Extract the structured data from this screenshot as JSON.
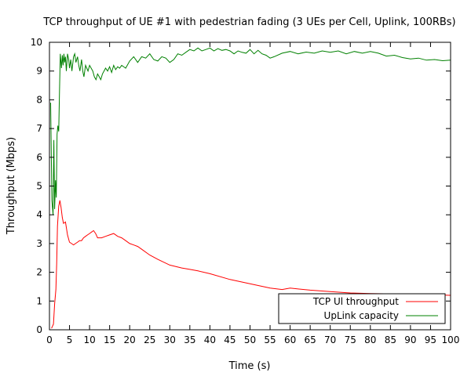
{
  "chart_data": {
    "type": "line",
    "title": "TCP throughput of UE #1 with pedestrian fading (3 UEs per Cell, Uplink, 100RBs)",
    "xlabel": "Time (s)",
    "ylabel": "Throughput (Mbps)",
    "xlim": [
      0,
      100
    ],
    "ylim": [
      0,
      10
    ],
    "xticks": [
      "0",
      "5",
      "10",
      "15",
      "20",
      "25",
      "30",
      "35",
      "40",
      "45",
      "50",
      "55",
      "60",
      "65",
      "70",
      "75",
      "80",
      "85",
      "90",
      "95",
      "100"
    ],
    "yticks": [
      "0",
      "1",
      "2",
      "3",
      "4",
      "5",
      "6",
      "7",
      "8",
      "9",
      "10"
    ],
    "grid": false,
    "legend_position": "bottom-right",
    "series": [
      {
        "name": "TCP Ul throughput",
        "color": "#ff0000",
        "x": [
          0.5,
          1.0,
          1.3,
          1.6,
          1.8,
          2.0,
          2.3,
          2.6,
          2.9,
          3.2,
          3.5,
          4.0,
          4.5,
          5.0,
          5.5,
          6.0,
          6.5,
          7.0,
          7.5,
          8.0,
          8.5,
          9.0,
          9.5,
          10.0,
          10.5,
          11.0,
          11.5,
          12.0,
          12.5,
          13.0,
          14.0,
          15.0,
          16.0,
          17.0,
          18.0,
          19.0,
          20.0,
          21.0,
          22.0,
          23.0,
          25.0,
          27.0,
          30.0,
          33.0,
          35.0,
          37.0,
          40.0,
          45.0,
          50.0,
          55.0,
          58.0,
          60.0,
          62.0,
          65.0,
          70.0,
          75.0,
          80.0,
          85.0,
          90.0,
          95.0,
          100.0
        ],
        "y": [
          0.05,
          0.2,
          0.9,
          1.4,
          2.3,
          3.6,
          4.3,
          4.5,
          4.25,
          3.9,
          3.7,
          3.75,
          3.3,
          3.05,
          3.0,
          2.95,
          3.0,
          3.05,
          3.1,
          3.1,
          3.2,
          3.25,
          3.3,
          3.35,
          3.4,
          3.45,
          3.35,
          3.2,
          3.2,
          3.2,
          3.25,
          3.3,
          3.35,
          3.25,
          3.2,
          3.1,
          3.0,
          2.95,
          2.9,
          2.8,
          2.6,
          2.45,
          2.25,
          2.15,
          2.1,
          2.05,
          1.95,
          1.75,
          1.6,
          1.45,
          1.4,
          1.45,
          1.42,
          1.38,
          1.33,
          1.28,
          1.26,
          1.25,
          1.23,
          1.22,
          1.2
        ]
      },
      {
        "name": "UpLink capacity",
        "color": "#008000",
        "x": [
          0.3,
          0.6,
          0.9,
          1.1,
          1.3,
          1.5,
          1.7,
          1.9,
          2.1,
          2.3,
          2.5,
          2.7,
          3.0,
          3.2,
          3.4,
          3.6,
          3.8,
          4.0,
          4.2,
          4.5,
          4.8,
          5.0,
          5.3,
          5.6,
          6.0,
          6.3,
          6.6,
          7.0,
          7.3,
          7.6,
          8.0,
          8.3,
          8.6,
          9.0,
          9.3,
          9.6,
          10.0,
          10.4,
          10.8,
          11.2,
          11.6,
          12.0,
          12.4,
          12.8,
          13.2,
          13.6,
          14.0,
          14.5,
          15.0,
          15.5,
          16.0,
          16.5,
          17.0,
          17.5,
          18.0,
          19.0,
          20.0,
          21.0,
          22.0,
          23.0,
          24.0,
          25.0,
          26.0,
          27.0,
          28.0,
          29.0,
          30.0,
          31.0,
          32.0,
          33.0,
          34.0,
          35.0,
          36.0,
          37.0,
          38.0,
          39.0,
          40.0,
          41.0,
          42.0,
          43.0,
          44.0,
          45.0,
          46.0,
          47.0,
          48.0,
          49.0,
          50.0,
          51.0,
          52.0,
          53.0,
          54.0,
          55.0,
          56.0,
          58.0,
          60.0,
          62.0,
          64.0,
          66.0,
          68.0,
          70.0,
          72.0,
          74.0,
          76.0,
          78.0,
          80.0,
          82.0,
          84.0,
          86.0,
          88.0,
          90.0,
          92.0,
          94.0,
          96.0,
          98.0,
          100.0
        ],
        "y": [
          7.9,
          4.5,
          4.0,
          6.6,
          4.2,
          5.2,
          4.6,
          6.8,
          7.1,
          6.9,
          8.3,
          9.6,
          9.1,
          9.55,
          9.2,
          9.6,
          9.3,
          9.5,
          9.0,
          9.6,
          9.4,
          9.1,
          9.4,
          9.0,
          9.5,
          9.6,
          9.3,
          9.5,
          9.2,
          9.0,
          9.4,
          9.0,
          8.8,
          9.2,
          9.1,
          9.0,
          9.2,
          9.1,
          9.0,
          8.8,
          8.7,
          8.9,
          8.8,
          8.7,
          8.9,
          9.0,
          9.1,
          9.0,
          9.15,
          8.95,
          9.2,
          9.05,
          9.15,
          9.1,
          9.2,
          9.1,
          9.35,
          9.5,
          9.3,
          9.5,
          9.45,
          9.6,
          9.4,
          9.35,
          9.5,
          9.45,
          9.3,
          9.4,
          9.6,
          9.55,
          9.65,
          9.75,
          9.7,
          9.8,
          9.7,
          9.75,
          9.8,
          9.7,
          9.78,
          9.72,
          9.75,
          9.7,
          9.6,
          9.7,
          9.65,
          9.62,
          9.75,
          9.6,
          9.72,
          9.6,
          9.55,
          9.45,
          9.5,
          9.62,
          9.68,
          9.6,
          9.66,
          9.62,
          9.7,
          9.65,
          9.7,
          9.6,
          9.68,
          9.62,
          9.68,
          9.62,
          9.52,
          9.55,
          9.47,
          9.42,
          9.45,
          9.38,
          9.4,
          9.36,
          9.38
        ]
      }
    ]
  }
}
